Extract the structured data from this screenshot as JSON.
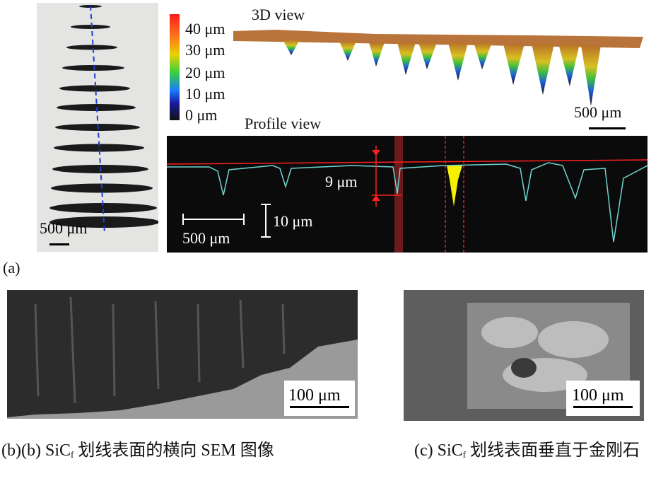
{
  "colorbar": {
    "labels": [
      "40 μm",
      "30 μm",
      "20 μm",
      "10 μm",
      "0 μm"
    ]
  },
  "view3d": {
    "title": "3D view",
    "scale": "500 μm"
  },
  "profile": {
    "title": "Profile view",
    "depth_label": "9 μm",
    "scale_h": "500 μm",
    "scale_v": "10 μm"
  },
  "micrograph": {
    "scale": "500 μm"
  },
  "panel_a": {
    "label": "(a)"
  },
  "panel_b": {
    "scale": "100 μm",
    "caption_prefix": "(b)(b) SiC",
    "caption_sub": "f",
    "caption_suffix": " 划线表面的横向 SEM 图像"
  },
  "panel_c": {
    "scale": "100 μm",
    "caption_prefix": "(c) SiC",
    "caption_sub": "f",
    "caption_suffix": " 划线表面垂直于金刚石"
  }
}
